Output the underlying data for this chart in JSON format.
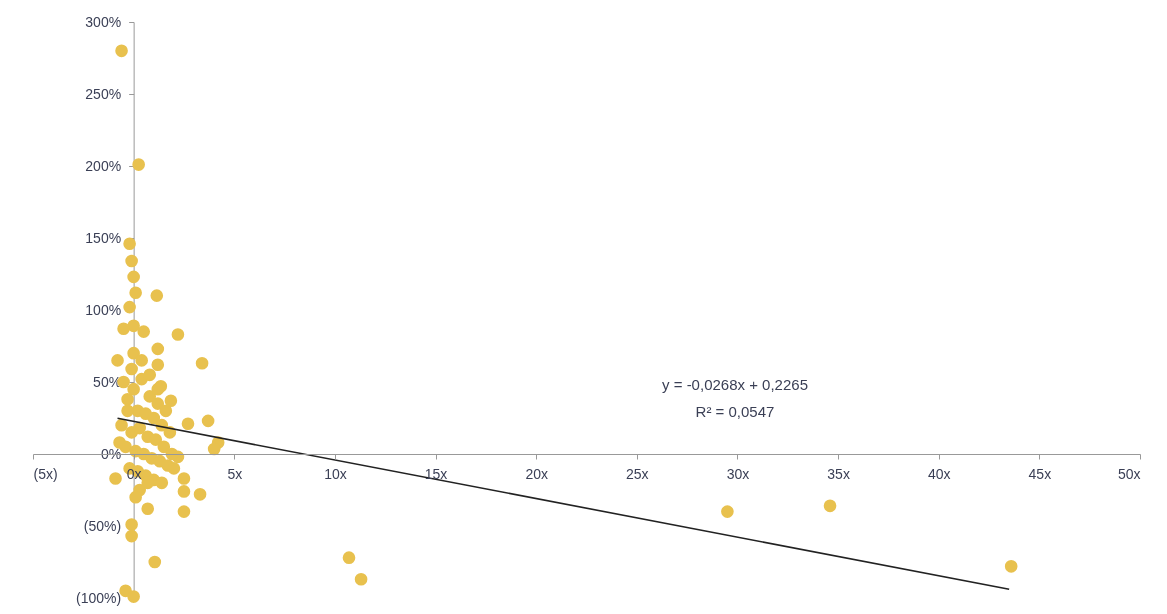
{
  "chart_data": {
    "type": "scatter",
    "xlim": [
      -5,
      50
    ],
    "xticks": [
      {
        "value": -5,
        "label": "(5x)"
      },
      {
        "value": 0,
        "label": "0x"
      },
      {
        "value": 5,
        "label": "5x"
      },
      {
        "value": 10,
        "label": "10x"
      },
      {
        "value": 15,
        "label": "15x"
      },
      {
        "value": 20,
        "label": "20x"
      },
      {
        "value": 25,
        "label": "25x"
      },
      {
        "value": 30,
        "label": "30x"
      },
      {
        "value": 35,
        "label": "35x"
      },
      {
        "value": 40,
        "label": "40x"
      },
      {
        "value": 45,
        "label": "45x"
      },
      {
        "value": 50,
        "label": "50x"
      }
    ],
    "ylim": [
      -100,
      300
    ],
    "yticks": [
      {
        "value": -100,
        "label": "(100%)"
      },
      {
        "value": -50,
        "label": "(50%)"
      },
      {
        "value": 0,
        "label": "0%"
      },
      {
        "value": 50,
        "label": "50%"
      },
      {
        "value": 100,
        "label": "100%"
      },
      {
        "value": 150,
        "label": "150%"
      },
      {
        "value": 200,
        "label": "200%"
      },
      {
        "value": 250,
        "label": "250%"
      },
      {
        "value": 300,
        "label": "300%"
      }
    ],
    "grid": false,
    "marker": "circle",
    "annotations": [
      "y = -0,0268x + 0,2265",
      "R² = 0,0547"
    ],
    "series": [
      {
        "color": "#e8c14e",
        "x": [
          -0.6,
          0.25,
          -0.2,
          -0.1,
          0,
          0.1,
          1.15,
          -0.2,
          0,
          -0.5,
          0.5,
          2.2,
          1.2,
          -0.8,
          3.4,
          1.2,
          -0.1,
          1.35,
          1.85,
          2.7,
          3.7,
          4.2,
          4.0,
          2.2,
          -0.9,
          2.5,
          2.5,
          3.3,
          2.5,
          0.7,
          -0.1,
          -0.1,
          1.05,
          -0.4,
          0,
          10.7,
          11.3,
          29.5,
          34.6,
          43.6,
          -0.5,
          0,
          0.4,
          0.8,
          1.2,
          1.6,
          -0.3,
          0.2,
          0.6,
          1.0,
          1.4,
          1.8,
          -0.6,
          -0.1,
          0.3,
          0.7,
          1.1,
          1.5,
          1.9,
          -0.4,
          0.1,
          0.5,
          0.9,
          1.3,
          1.7,
          -0.7,
          -0.2,
          0.2,
          0.6,
          1.0,
          1.4,
          2.0,
          0,
          0.4,
          0.8,
          1.2,
          0.3,
          0.7,
          -0.3,
          0.1
        ],
        "values": [
          280,
          201,
          146,
          134,
          123,
          112,
          110,
          102,
          89,
          87,
          85,
          83,
          73,
          65,
          63,
          62,
          59,
          47,
          37,
          21,
          23,
          8,
          3.5,
          -2,
          -17,
          -17,
          -26,
          -28,
          -40,
          -38,
          -49,
          -57,
          -75,
          -95,
          -99,
          -72,
          -87,
          -40,
          -36,
          -78,
          50,
          45,
          52,
          40,
          35,
          30,
          38,
          30,
          28,
          25,
          20,
          15,
          20,
          15,
          18,
          12,
          10,
          5,
          0,
          5,
          2,
          0,
          -3,
          -5,
          -8,
          8,
          -10,
          -12,
          -15,
          -18,
          -20,
          -10,
          70,
          65,
          55,
          45,
          -25,
          -20,
          30,
          -30
        ]
      },
      {
        "type": "line",
        "marker": "none",
        "color": "#222222",
        "x": [
          -0.8,
          43.5
        ],
        "values": [
          24.8,
          -93.9
        ]
      }
    ]
  }
}
